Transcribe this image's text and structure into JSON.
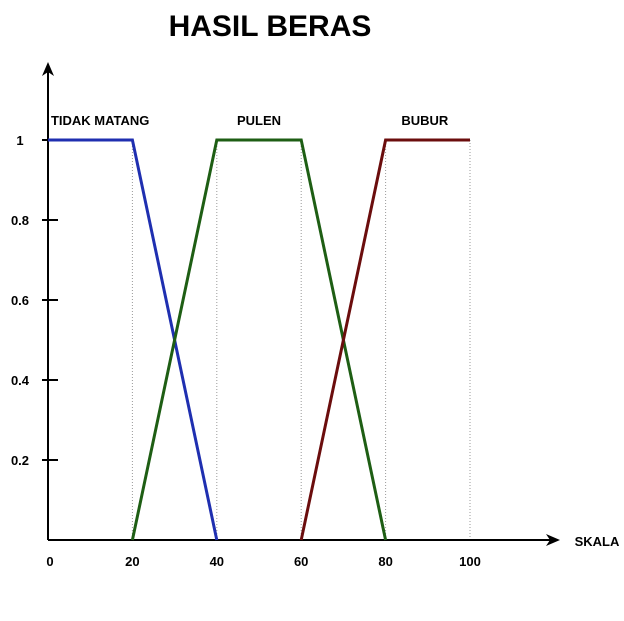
{
  "chart_data": {
    "type": "line",
    "title": "HASIL BERAS",
    "xlabel": "SKALA",
    "ylabel": "",
    "xlim": [
      0,
      100
    ],
    "ylim": [
      0,
      1
    ],
    "x_ticks": [
      0,
      20,
      40,
      60,
      80,
      100
    ],
    "y_ticks": [
      0.2,
      0.4,
      0.6,
      0.8,
      1
    ],
    "y_tick_labels": [
      "0.2",
      "0.4",
      "0.6",
      "0.8",
      "1"
    ],
    "x_tick_labels": [
      "0",
      "20",
      "40",
      "60",
      "80",
      "100"
    ],
    "grid": false,
    "series": [
      {
        "name": "TIDAK MATANG",
        "color": "#1f2fb0",
        "x": [
          0,
          20,
          40
        ],
        "y": [
          1,
          1,
          0
        ]
      },
      {
        "name": "PULEN",
        "color": "#1e5e14",
        "x": [
          20,
          40,
          60,
          80
        ],
        "y": [
          0,
          1,
          1,
          0
        ]
      },
      {
        "name": "BUBUR",
        "color": "#6b0d0d",
        "x": [
          60,
          80,
          100
        ],
        "y": [
          0,
          1,
          1
        ]
      }
    ]
  }
}
